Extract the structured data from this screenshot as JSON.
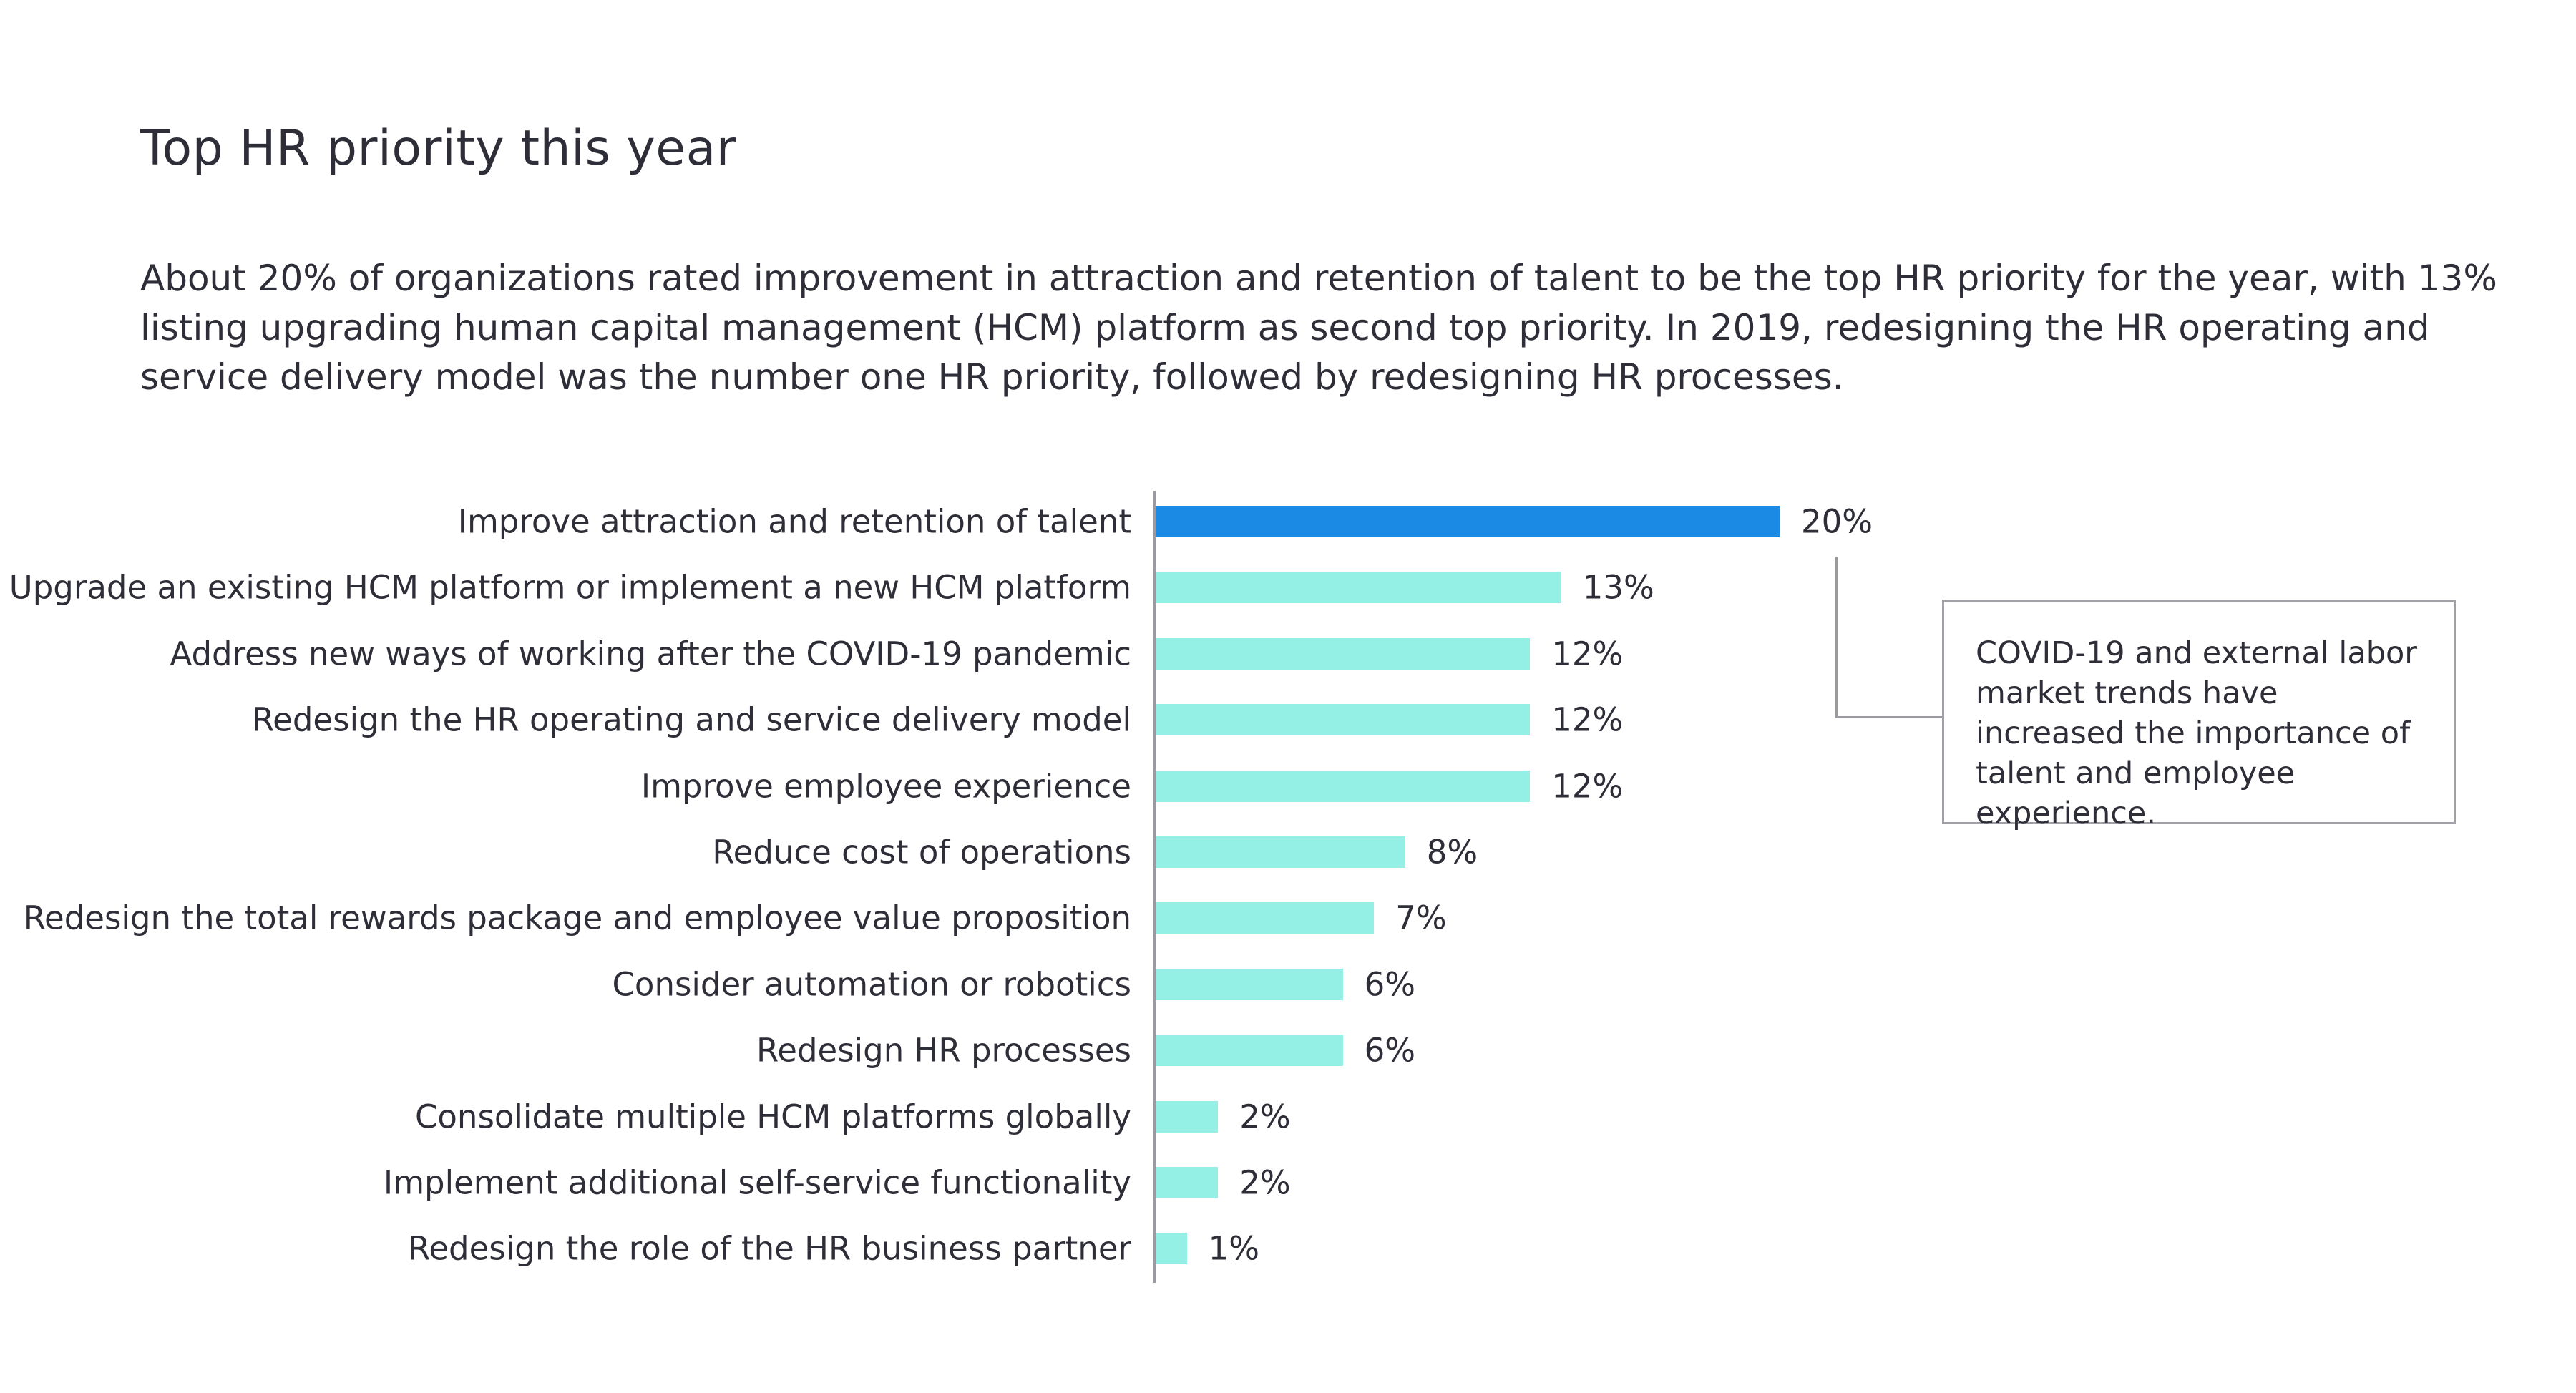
{
  "title": "Top HR priority this year",
  "description": "About 20% of organizations rated improvement in attraction and retention of talent to be the top HR priority for the year, with 13% listing upgrading human capital management (HCM) platform as second top priority. In 2019, redesigning the HR operating and service delivery model was the number one HR priority, followed by redesigning HR processes.",
  "chart_data": {
    "type": "bar",
    "orientation": "horizontal",
    "title": "Top HR priority this year",
    "xlabel": "",
    "ylabel": "",
    "xlim": [
      0,
      20
    ],
    "grid": false,
    "categories": [
      "Improve attraction and retention of talent",
      "Upgrade an existing HCM platform or implement a new HCM platform",
      "Address new ways of working after the COVID-19 pandemic",
      "Redesign the HR operating and service delivery model",
      "Improve employee experience",
      "Reduce cost of operations",
      "Redesign the total rewards package and employee value proposition",
      "Consider automation or robotics",
      "Redesign HR processes",
      "Consolidate multiple HCM platforms globally",
      "Implement additional self-service functionality",
      "Redesign the role of the HR business partner"
    ],
    "values": [
      20,
      13,
      12,
      12,
      12,
      8,
      7,
      6,
      6,
      2,
      2,
      1
    ],
    "value_labels": [
      "20%",
      "13%",
      "12%",
      "12%",
      "12%",
      "8%",
      "7%",
      "6%",
      "6%",
      "2%",
      "2%",
      "1%"
    ],
    "colors": {
      "highlight": "#1a8ae5",
      "default": "#94f0e4"
    },
    "highlight_index": 0,
    "annotation": "COVID-19 and external labor market trends have increased the importance of talent and employee experience."
  }
}
